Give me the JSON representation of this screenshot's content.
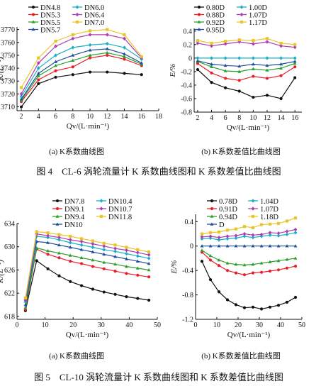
{
  "figures": [
    {
      "caption": "图 4　CL-6 涡轮流量计 K 系数曲线图和 K 系数差值比曲线图",
      "panels": [
        {
          "subcaption": "(a) K系数曲线图"
        },
        {
          "subcaption": "(b) K系数差值比曲线图"
        }
      ]
    },
    {
      "caption": "图 5　CL-10 涡轮流量计 K 系数曲线图和 K 系数差值比曲线图",
      "panels": [
        {
          "subcaption": "(a) K系数曲线图"
        },
        {
          "subcaption": "(b) K系数差值比曲线图"
        }
      ]
    }
  ],
  "chart_data": [
    {
      "type": "line",
      "xlabel": "Qv/(L·min⁻¹)",
      "ylabel": "K/(L⁻¹)",
      "xticks": [
        2,
        4,
        6,
        8,
        10,
        12,
        14,
        16,
        18
      ],
      "yticks": [
        3710,
        3720,
        3730,
        3740,
        3750,
        3760,
        3770
      ],
      "xlim": [
        1.5,
        18
      ],
      "ylim": [
        3707,
        3772
      ],
      "legend_ncol": 2,
      "x": [
        2,
        4,
        6,
        8,
        10,
        12,
        14,
        16
      ],
      "series": [
        {
          "name": "DN4.8",
          "color": "#111111",
          "marker": "circle",
          "values": [
            3710,
            3728,
            3733,
            3735,
            3737,
            3737,
            3736,
            3735
          ]
        },
        {
          "name": "DN5.3",
          "color": "#e8202a",
          "marker": "circle",
          "values": [
            3714,
            3731,
            3738,
            3741,
            3748,
            3750,
            3747,
            3742
          ]
        },
        {
          "name": "DN5.5",
          "color": "#2ca02c",
          "marker": "triangle",
          "values": [
            3715,
            3734,
            3742,
            3746,
            3750,
            3752,
            3749,
            3743
          ]
        },
        {
          "name": "DN5.7",
          "color": "#1f4e9c",
          "marker": "triangle",
          "values": [
            3716,
            3736,
            3745,
            3750,
            3754,
            3755,
            3751,
            3744
          ]
        },
        {
          "name": "DN6.0",
          "color": "#17b0c6",
          "marker": "diamond",
          "values": [
            3718,
            3740,
            3750,
            3756,
            3758,
            3759,
            3756,
            3747
          ]
        },
        {
          "name": "DN6.4",
          "color": "#b03ab5",
          "marker": "diamond",
          "values": [
            3720,
            3744,
            3757,
            3763,
            3766,
            3766,
            3763,
            3748
          ]
        },
        {
          "name": "DN7.0",
          "color": "#e8c62a",
          "marker": "square",
          "values": [
            3725,
            3748,
            3761,
            3766,
            3769,
            3770,
            3766,
            3749
          ]
        }
      ]
    },
    {
      "type": "line",
      "xlabel": "Qv/(L·min⁻¹)",
      "ylabel": "E/%",
      "xticks": [
        2,
        4,
        6,
        8,
        10,
        12,
        14,
        16
      ],
      "yticks": [
        -0.8,
        -0.6,
        -0.4,
        -0.2,
        0,
        0.2,
        0.4
      ],
      "xlim": [
        1.5,
        17
      ],
      "ylim": [
        -0.8,
        0.44
      ],
      "legend_ncol": 2,
      "x": [
        2,
        4,
        6,
        8,
        10,
        12,
        14,
        16
      ],
      "series": [
        {
          "name": "0.80D",
          "color": "#111111",
          "marker": "circle",
          "values": [
            -0.17,
            -0.36,
            -0.44,
            -0.49,
            -0.58,
            -0.55,
            -0.6,
            -0.29
          ]
        },
        {
          "name": "0.88D",
          "color": "#e8202a",
          "marker": "circle",
          "values": [
            -0.08,
            -0.22,
            -0.3,
            -0.33,
            -0.27,
            -0.3,
            -0.26,
            -0.13
          ]
        },
        {
          "name": "0.92D",
          "color": "#2ca02c",
          "marker": "triangle",
          "values": [
            -0.05,
            -0.13,
            -0.19,
            -0.2,
            -0.16,
            -0.18,
            -0.15,
            -0.08
          ]
        },
        {
          "name": "0.95D",
          "color": "#1f4e9c",
          "marker": "triangle",
          "values": [
            -0.04,
            -0.09,
            -0.11,
            -0.12,
            -0.09,
            -0.11,
            -0.09,
            -0.05
          ]
        },
        {
          "name": "1.00D",
          "color": "#17b0c6",
          "marker": "diamond",
          "values": [
            0,
            0,
            0,
            0,
            0,
            0,
            0,
            0
          ]
        },
        {
          "name": "1.07D",
          "color": "#b03ab5",
          "marker": "diamond",
          "values": [
            0.22,
            0.18,
            0.21,
            0.24,
            0.21,
            0.24,
            0.18,
            0.16
          ]
        },
        {
          "name": "1.17D",
          "color": "#e8c62a",
          "marker": "square",
          "values": [
            0.26,
            0.22,
            0.25,
            0.27,
            0.26,
            0.29,
            0.22,
            0.2
          ]
        }
      ]
    },
    {
      "type": "line",
      "xlabel": "Qv/(L·min⁻¹)",
      "ylabel": "K/(L⁻¹)",
      "xticks": [
        0,
        10,
        20,
        30,
        40,
        50
      ],
      "yticks": [
        618,
        622,
        626,
        630,
        634
      ],
      "xlim": [
        0,
        50
      ],
      "ylim": [
        617.5,
        634
      ],
      "legend_ncol": 2,
      "x": [
        3,
        7,
        11,
        15,
        19,
        23,
        27,
        31,
        35,
        39,
        43,
        47
      ],
      "series": [
        {
          "name": "DN7.8",
          "color": "#111111",
          "marker": "circle",
          "values": [
            619,
            627.6,
            626.2,
            625,
            624,
            623.3,
            622.7,
            622.2,
            621.8,
            621.4,
            621.1,
            620.8
          ]
        },
        {
          "name": "DN9.1",
          "color": "#e8202a",
          "marker": "circle",
          "values": [
            619.2,
            629.6,
            628.7,
            628.1,
            627.5,
            627.1,
            626.6,
            626.2,
            625.8,
            625.4,
            625.1,
            624.8
          ]
        },
        {
          "name": "DN9.4",
          "color": "#2ca02c",
          "marker": "triangle",
          "values": [
            619.5,
            629.8,
            629.3,
            628.9,
            628.5,
            628.1,
            627.7,
            627.3,
            627.0,
            626.6,
            626.3,
            626.0
          ]
        },
        {
          "name": "DN10",
          "color": "#1f4e9c",
          "marker": "triangle",
          "values": [
            620,
            630.9,
            630.7,
            630.3,
            629.9,
            629.5,
            629.1,
            628.7,
            628.3,
            627.9,
            627.5,
            627.1
          ]
        },
        {
          "name": "DN10.4",
          "color": "#17b0c6",
          "marker": "diamond",
          "values": [
            620.5,
            631.8,
            631.6,
            631.2,
            630.7,
            630.3,
            629.9,
            629.5,
            629.2,
            628.8,
            628.4,
            628.0
          ]
        },
        {
          "name": "DN10.7",
          "color": "#b03ab5",
          "marker": "diamond",
          "values": [
            620.8,
            632.2,
            631.9,
            631.6,
            631.2,
            630.9,
            630.5,
            630.1,
            629.7,
            629.4,
            629.0,
            628.6
          ]
        },
        {
          "name": "DN11.8",
          "color": "#e8c62a",
          "marker": "square",
          "values": [
            621.2,
            632.6,
            632.4,
            632.1,
            631.8,
            631.4,
            631.0,
            630.6,
            630.3,
            629.9,
            629.5,
            629.1
          ]
        }
      ]
    },
    {
      "type": "line",
      "xlabel": "Qv/(L·min⁻¹)",
      "ylabel": "E/%",
      "xticks": [
        0,
        10,
        20,
        30,
        40,
        50
      ],
      "yticks": [
        -1.2,
        -0.8,
        -0.4,
        0,
        0.4
      ],
      "xlim": [
        0,
        50
      ],
      "ylim": [
        -1.2,
        0.52
      ],
      "legend_ncol": 2,
      "x": [
        3,
        7,
        11,
        15,
        19,
        23,
        27,
        31,
        35,
        39,
        43,
        47
      ],
      "series": [
        {
          "name": "0.78D",
          "color": "#111111",
          "marker": "circle",
          "values": [
            -0.25,
            -0.55,
            -0.75,
            -0.88,
            -0.96,
            -1.01,
            -1.0,
            -1.03,
            -1.0,
            -0.97,
            -0.92,
            -0.84
          ]
        },
        {
          "name": "0.91D",
          "color": "#e8202a",
          "marker": "circle",
          "values": [
            -0.1,
            -0.23,
            -0.32,
            -0.4,
            -0.44,
            -0.47,
            -0.44,
            -0.43,
            -0.41,
            -0.39,
            -0.36,
            -0.33
          ]
        },
        {
          "name": "0.94D",
          "color": "#2ca02c",
          "marker": "triangle",
          "values": [
            -0.07,
            -0.16,
            -0.23,
            -0.28,
            -0.3,
            -0.31,
            -0.3,
            -0.28,
            -0.26,
            -0.24,
            -0.22,
            -0.2
          ]
        },
        {
          "name": "D",
          "color": "#1f4e9c",
          "marker": "triangle",
          "values": [
            0,
            0,
            0,
            0,
            0,
            0,
            0,
            0,
            0,
            0,
            0,
            0
          ]
        },
        {
          "name": "1.04D",
          "color": "#17b0c6",
          "marker": "diamond",
          "values": [
            0.12,
            0.13,
            0.1,
            0.12,
            0.13,
            0.16,
            0.14,
            0.16,
            0.18,
            0.17,
            0.19,
            0.22
          ]
        },
        {
          "name": "1.07D",
          "color": "#b03ab5",
          "marker": "diamond",
          "values": [
            0.15,
            0.16,
            0.14,
            0.16,
            0.17,
            0.2,
            0.18,
            0.19,
            0.22,
            0.21,
            0.24,
            0.27
          ]
        },
        {
          "name": "1.18D",
          "color": "#e8c62a",
          "marker": "square",
          "values": [
            0.2,
            0.22,
            0.23,
            0.26,
            0.28,
            0.32,
            0.3,
            0.35,
            0.36,
            0.37,
            0.41,
            0.46
          ]
        }
      ]
    }
  ]
}
